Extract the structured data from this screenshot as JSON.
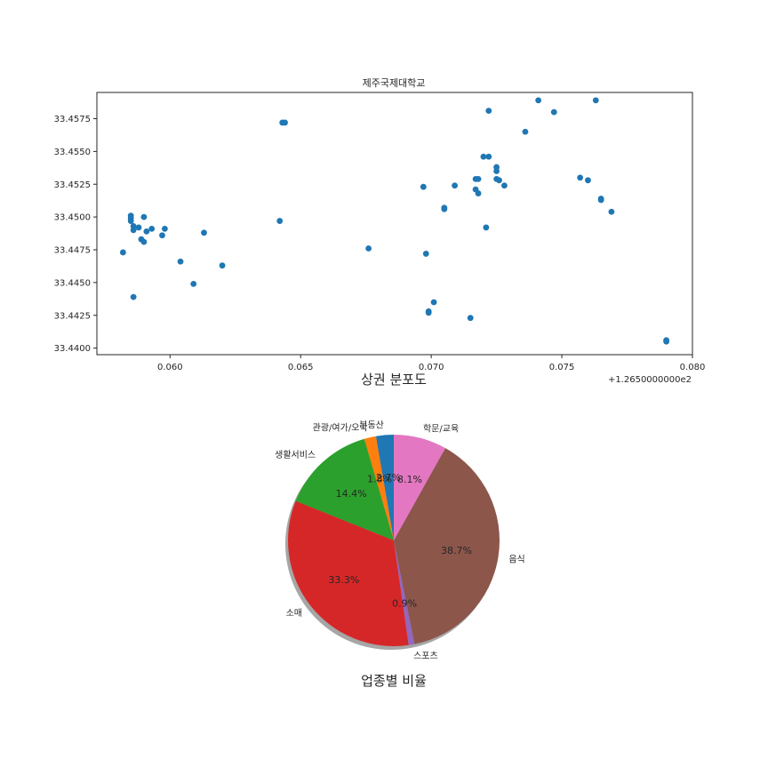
{
  "chart_data": [
    {
      "type": "scatter",
      "title": "제주국제대학교",
      "xlabel": "상권 분포도",
      "ylabel": "",
      "offset_text": "+1.2650000000e2",
      "xlim": [
        0.0572,
        0.08
      ],
      "ylim": [
        33.4395,
        33.4595
      ],
      "xticks": [
        0.06,
        0.065,
        0.07,
        0.075,
        0.08
      ],
      "xtick_labels": [
        "0.060",
        "0.065",
        "0.070",
        "0.075",
        "0.080"
      ],
      "yticks": [
        33.44,
        33.4425,
        33.445,
        33.4475,
        33.45,
        33.4525,
        33.455,
        33.4575
      ],
      "ytick_labels": [
        "33.4400",
        "33.4425",
        "33.4450",
        "33.4475",
        "33.4500",
        "33.4525",
        "33.4550",
        "33.4575"
      ],
      "color": "#1f77b4",
      "points": [
        [
          0.0582,
          33.4473
        ],
        [
          0.0585,
          33.4501
        ],
        [
          0.0585,
          33.4499
        ],
        [
          0.0585,
          33.4497
        ],
        [
          0.0586,
          33.4493
        ],
        [
          0.0586,
          33.449
        ],
        [
          0.0586,
          33.4439
        ],
        [
          0.0588,
          33.4492
        ],
        [
          0.0589,
          33.4483
        ],
        [
          0.059,
          33.45
        ],
        [
          0.059,
          33.4481
        ],
        [
          0.0591,
          33.4489
        ],
        [
          0.0593,
          33.4491
        ],
        [
          0.0597,
          33.4486
        ],
        [
          0.0598,
          33.4491
        ],
        [
          0.0604,
          33.4466
        ],
        [
          0.0609,
          33.4449
        ],
        [
          0.0613,
          33.4488
        ],
        [
          0.062,
          33.4463
        ],
        [
          0.0642,
          33.4497
        ],
        [
          0.0643,
          33.4572
        ],
        [
          0.0644,
          33.4572
        ],
        [
          0.0676,
          33.4476
        ],
        [
          0.0697,
          33.4523
        ],
        [
          0.0698,
          33.4472
        ],
        [
          0.0699,
          33.4428
        ],
        [
          0.0699,
          33.4427
        ],
        [
          0.0701,
          33.4435
        ],
        [
          0.0705,
          33.4507
        ],
        [
          0.0705,
          33.4506
        ],
        [
          0.0709,
          33.4524
        ],
        [
          0.0715,
          33.4423
        ],
        [
          0.0717,
          33.4529
        ],
        [
          0.0717,
          33.4521
        ],
        [
          0.0718,
          33.4529
        ],
        [
          0.0718,
          33.4518
        ],
        [
          0.072,
          33.4546
        ],
        [
          0.0721,
          33.4492
        ],
        [
          0.0722,
          33.4546
        ],
        [
          0.0722,
          33.4581
        ],
        [
          0.0725,
          33.4538
        ],
        [
          0.0725,
          33.4535
        ],
        [
          0.0725,
          33.4529
        ],
        [
          0.0726,
          33.4528
        ],
        [
          0.0728,
          33.4524
        ],
        [
          0.0736,
          33.4565
        ],
        [
          0.0741,
          33.4589
        ],
        [
          0.0747,
          33.458
        ],
        [
          0.0757,
          33.453
        ],
        [
          0.076,
          33.4528
        ],
        [
          0.0763,
          33.4589
        ],
        [
          0.0765,
          33.4514
        ],
        [
          0.0765,
          33.4513
        ],
        [
          0.0769,
          33.4504
        ],
        [
          0.079,
          33.4406
        ],
        [
          0.079,
          33.4405
        ]
      ]
    },
    {
      "type": "pie",
      "title": "업종별 비율",
      "start_angle_deg": 90,
      "direction": "counterclockwise",
      "shadow": true,
      "slices": [
        {
          "label": "부동산",
          "value": 2.7,
          "pct_text": "2.7%",
          "color": "#1f77b4"
        },
        {
          "label": "관광/여가/오락",
          "value": 1.8,
          "pct_text": "1.8%",
          "color": "#ff7f0e"
        },
        {
          "label": "생활서비스",
          "value": 14.4,
          "pct_text": "14.4%",
          "color": "#2ca02c"
        },
        {
          "label": "소매",
          "value": 33.3,
          "pct_text": "33.3%",
          "color": "#d62728"
        },
        {
          "label": "스포츠",
          "value": 0.9,
          "pct_text": "0.9%",
          "color": "#9467bd"
        },
        {
          "label": "음식",
          "value": 38.7,
          "pct_text": "38.7%",
          "color": "#8c564b"
        },
        {
          "label": "학문/교육",
          "value": 8.1,
          "pct_text": "8.1%",
          "color": "#e377c2"
        }
      ]
    }
  ]
}
